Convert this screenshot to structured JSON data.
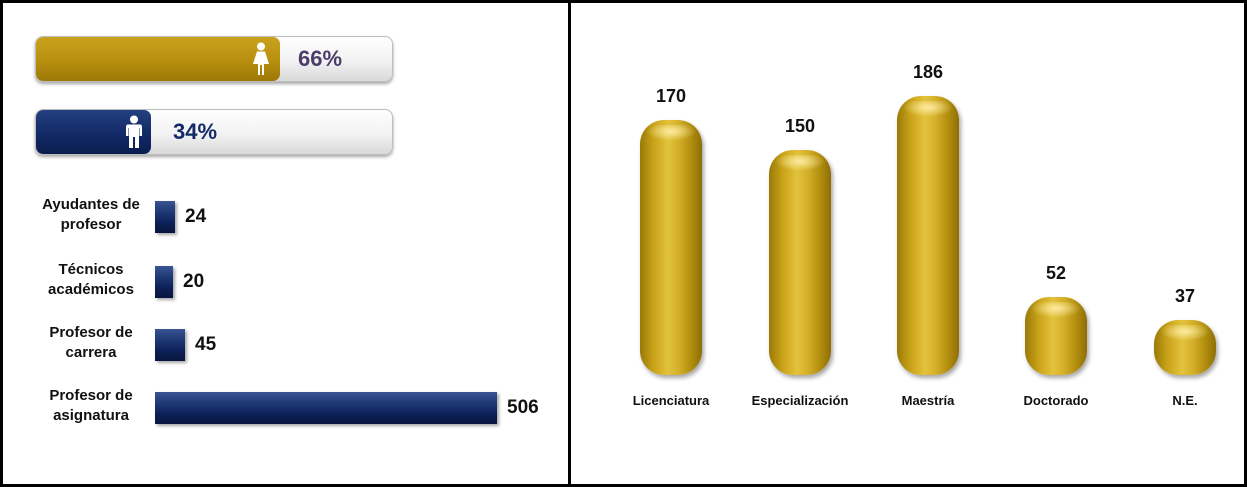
{
  "gender": {
    "female": {
      "icon": "female-person-icon",
      "percent": 66,
      "label": "66%",
      "color": "#B8900F",
      "text_color": "#4B3C6A"
    },
    "male": {
      "icon": "male-person-icon",
      "percent": 34,
      "label": "34%",
      "color": "#122A66",
      "text_color": "#122A66"
    }
  },
  "chart_data": [
    {
      "type": "bar",
      "orientation": "horizontal",
      "categories": [
        "Ayudantes de profesor",
        "Técnicos académicos",
        "Profesor de carrera",
        "Profesor de asignatura"
      ],
      "values": [
        24,
        20,
        45,
        506
      ],
      "value_labels": [
        "24",
        "20",
        "45",
        "506"
      ],
      "color": "#0C2057"
    },
    {
      "type": "bar",
      "orientation": "vertical",
      "categories": [
        "Licenciatura",
        "Especialización",
        "Maestría",
        "Doctorado",
        "N.E."
      ],
      "values": [
        170,
        150,
        186,
        52,
        37
      ],
      "value_labels": [
        "170",
        "150",
        "186",
        "52",
        "37"
      ],
      "color": "#C9A319"
    }
  ]
}
